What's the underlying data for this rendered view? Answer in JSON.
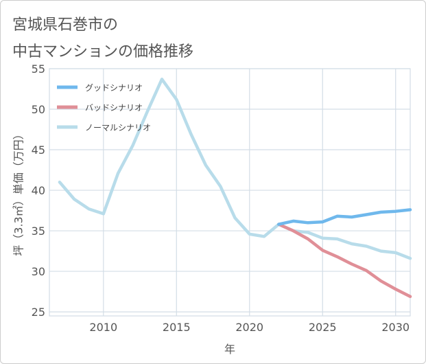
{
  "title_lines": [
    "宮城県石巻市の",
    "中古マンションの価格推移"
  ],
  "colors": {
    "good": "#6fb8ec",
    "bad": "#e08f97",
    "normal": "#b8dcea",
    "grid": "#d3dde6",
    "text": "#555555"
  },
  "chart_data": {
    "type": "line",
    "title": "宮城県石巻市の 中古マンションの価格推移",
    "xlabel": "年",
    "ylabel": "坪（3.3㎡）単価（万円）",
    "xlim": [
      2006.3,
      2031
    ],
    "ylim": [
      24.5,
      55
    ],
    "x_ticks": [
      2010,
      2015,
      2020,
      2025,
      2030
    ],
    "y_ticks": [
      25,
      30,
      35,
      40,
      45,
      50,
      55
    ],
    "grid": true,
    "legend_position": "top-left",
    "series": [
      {
        "name": "グッドシナリオ",
        "color": "#6fb8ec",
        "x": [
          2022,
          2023,
          2024,
          2025,
          2026,
          2027,
          2028,
          2029,
          2030,
          2031
        ],
        "y": [
          35.8,
          36.2,
          36.0,
          36.1,
          36.8,
          36.7,
          37.0,
          37.3,
          37.4,
          37.6
        ]
      },
      {
        "name": "バッドシナリオ",
        "color": "#e08f97",
        "x": [
          2022,
          2023,
          2024,
          2025,
          2026,
          2027,
          2028,
          2029,
          2030,
          2031
        ],
        "y": [
          35.8,
          35.0,
          34.0,
          32.6,
          31.8,
          30.9,
          30.1,
          28.8,
          27.8,
          26.9
        ]
      },
      {
        "name": "ノーマルシナリオ",
        "color": "#b8dcea",
        "x": [
          2007,
          2008,
          2009,
          2010,
          2011,
          2012,
          2013,
          2014,
          2015,
          2016,
          2017,
          2018,
          2019,
          2020,
          2021,
          2022,
          2023,
          2024,
          2025,
          2026,
          2027,
          2028,
          2029,
          2030,
          2031
        ],
        "y": [
          41.0,
          38.9,
          37.7,
          37.1,
          42.1,
          45.5,
          49.7,
          53.7,
          51.2,
          46.9,
          43.1,
          40.5,
          36.6,
          34.6,
          34.3,
          35.8,
          35.0,
          34.8,
          34.1,
          34.0,
          33.4,
          33.1,
          32.5,
          32.3,
          31.6
        ]
      }
    ]
  }
}
